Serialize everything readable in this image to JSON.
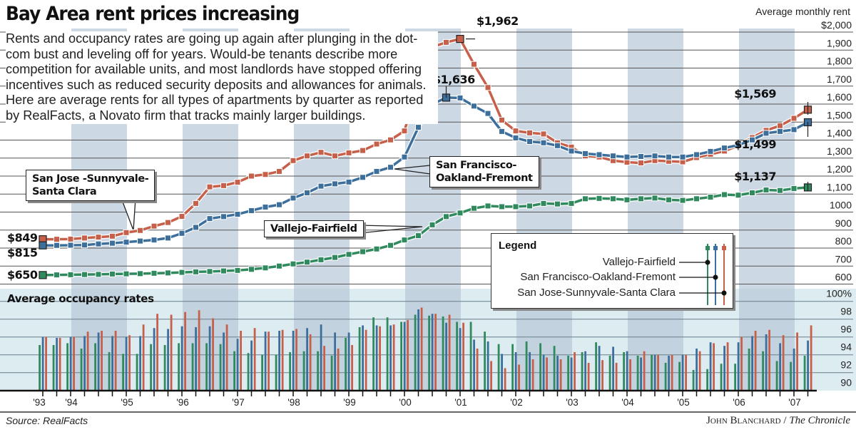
{
  "header": {
    "title": "Bay Area rent prices increasing",
    "intro": "Rents and occupancy rates are going up again after plunging in the dot-com bust and leveling off for years. Would-be tenants describe more competition for available units, and most landlords have stopped offering incentives such as reduced security deposits and allowances for animals. Here are average rents for all types of apartments by quarter as reported by RealFacts, a Novato firm that tracks mainly larger buildings."
  },
  "callouts": {
    "san_jose": "San Jose -Sunnyvale-\nSanta Clara",
    "san_francisco": "San Francisco-\nOakland-Fremont",
    "vallejo": "Vallejo-Fairfield"
  },
  "legend": {
    "title": "Legend",
    "entries": [
      "Vallejo-Fairfield",
      "San Francisco-Oakland-Fremont",
      "San Jose-Sunnyvale-Santa Clara"
    ]
  },
  "colors": {
    "san_jose": "#c7604a",
    "san_francisco": "#3d6f9c",
    "vallejo": "#2f8a5e",
    "band": "#cdd8e5",
    "occ_bg": "#ddecf1"
  },
  "footer": {
    "source": "Source: RealFacts",
    "credit_name": "John Blanchard",
    "credit_sep": " / ",
    "credit_pub": "The Chronicle"
  },
  "chart_data": [
    {
      "type": "line",
      "ylabel": "Average monthly rent",
      "ylim": [
        600,
        2000
      ],
      "yticks": [
        "600",
        "700",
        "800",
        "900",
        "1000",
        "1,100",
        "1,200",
        "1,300",
        "1,400",
        "1,500",
        "1,600",
        "1,700",
        "1,800",
        "1,900",
        "$2,000"
      ],
      "xticks": [
        "'93",
        "'94",
        "'95",
        "'96",
        "'97",
        "'98",
        "'99",
        "'00",
        "'01",
        "'02",
        "'03",
        "'04",
        "'05",
        "'06",
        "'07"
      ],
      "x_start": "1993 Q3",
      "x_end": "2007 Q2",
      "x_interval": "quarter",
      "grid": true,
      "series": [
        {
          "name": "San Jose-Sunnyvale-Santa Clara",
          "color": "#c7604a",
          "values": [
            849,
            849,
            850,
            856,
            861,
            866,
            886,
            898,
            922,
            942,
            976,
            1048,
            1140,
            1147,
            1166,
            1200,
            1209,
            1226,
            1286,
            1312,
            1332,
            1312,
            1329,
            1342,
            1378,
            1401,
            1451,
            1716,
            1917,
            1943,
            1962,
            1821,
            1692,
            1511,
            1451,
            1440,
            1434,
            1385,
            1361,
            1312,
            1306,
            1286,
            1277,
            1273,
            1286,
            1282,
            1279,
            1303,
            1321,
            1339,
            1369,
            1414,
            1454,
            1480,
            1521,
            1569
          ]
        },
        {
          "name": "San Francisco-Oakland-Fremont",
          "color": "#3d6f9c",
          "values": [
            815,
            815,
            816,
            817,
            823,
            827,
            833,
            839,
            845,
            856,
            882,
            915,
            964,
            975,
            988,
            1008,
            1028,
            1041,
            1078,
            1107,
            1144,
            1157,
            1167,
            1193,
            1226,
            1249,
            1306,
            1471,
            1599,
            1636,
            1634,
            1589,
            1548,
            1448,
            1412,
            1392,
            1385,
            1369,
            1339,
            1325,
            1319,
            1312,
            1306,
            1309,
            1312,
            1306,
            1306,
            1319,
            1337,
            1356,
            1372,
            1401,
            1438,
            1448,
            1458,
            1499
          ]
        },
        {
          "name": "Vallejo-Fairfield",
          "color": "#2f8a5e",
          "values": [
            650,
            651,
            652,
            653,
            654,
            656,
            657,
            658,
            660,
            662,
            665,
            668,
            670,
            673,
            676,
            682,
            690,
            700,
            712,
            722,
            735,
            748,
            765,
            780,
            795,
            815,
            845,
            869,
            929,
            975,
            995,
            1021,
            1034,
            1030,
            1030,
            1034,
            1048,
            1045,
            1048,
            1074,
            1076,
            1074,
            1068,
            1074,
            1078,
            1068,
            1065,
            1074,
            1083,
            1097,
            1094,
            1107,
            1123,
            1120,
            1131,
            1137
          ]
        }
      ],
      "annotations": [
        {
          "series": 0,
          "index": 0,
          "label": "$849"
        },
        {
          "series": 1,
          "index": 0,
          "label": "$815"
        },
        {
          "series": 2,
          "index": 0,
          "label": "$650"
        },
        {
          "series": 0,
          "index": 30,
          "label": "$1,962"
        },
        {
          "series": 1,
          "index": 29,
          "label": "$1,636"
        },
        {
          "series": 0,
          "index": 55,
          "label": "$1,569"
        },
        {
          "series": 1,
          "index": 55,
          "label": "$1,499"
        },
        {
          "series": 2,
          "index": 55,
          "label": "$1,137"
        }
      ]
    },
    {
      "type": "bar",
      "title": "Average occupancy rates",
      "ylim": [
        90,
        100
      ],
      "yticks": [
        "90",
        "92",
        "94",
        "96",
        "98",
        "100%"
      ],
      "series": [
        {
          "name": "Vallejo-Fairfield",
          "color": "#2f8a5e",
          "values": [
            95.1,
            95.1,
            95.3,
            94.7,
            95.3,
            94.3,
            94.1,
            94.1,
            95.2,
            95.1,
            95.3,
            95.3,
            95.3,
            95.2,
            94.4,
            94.2,
            94,
            94,
            94.3,
            94.4,
            94.4,
            93.9,
            95.9,
            97.1,
            98.2,
            98.2,
            97.7,
            98.5,
            98.4,
            98.3,
            97.7,
            97.7,
            96.6,
            95.2,
            95.2,
            95.5,
            95.3,
            95,
            93.9,
            94.3,
            95.4,
            93.9,
            94.3,
            93.9,
            94,
            93.1,
            93.2,
            92.3,
            92.4,
            93,
            93,
            94.7,
            94.4,
            93.3,
            93.2,
            93.9
          ]
        },
        {
          "name": "San Francisco-Oakland-Fremont",
          "color": "#3d6f9c",
          "values": [
            96,
            95.9,
            96,
            96.1,
            96.5,
            96.1,
            96,
            96.1,
            97,
            96.9,
            97.2,
            97.1,
            97.2,
            96.5,
            95.8,
            95.6,
            96.6,
            96.7,
            96.7,
            97,
            97.4,
            96.5,
            96.5,
            97.3,
            97.3,
            97.3,
            97.7,
            99.1,
            98.6,
            97.6,
            97,
            95.7,
            95.5,
            94.1,
            94.3,
            94.3,
            94,
            93.9,
            93.7,
            94.4,
            95,
            94.9,
            94.4,
            93.7,
            94,
            93.9,
            94,
            94.7,
            95.4,
            95,
            95.4,
            96.1,
            96.3,
            95.3,
            94.7,
            95.6
          ]
        },
        {
          "name": "San Jose-Sunnyvale-Santa Clara",
          "color": "#c7604a",
          "values": [
            96,
            95.9,
            96,
            96.6,
            96.7,
            96.7,
            96.2,
            97.4,
            98.6,
            98.5,
            98.8,
            99,
            98.1,
            97.4,
            96.7,
            97,
            96.6,
            96.8,
            96.9,
            96.3,
            95,
            94.7,
            95.1,
            96.8,
            97.2,
            97.4,
            97.9,
            99.3,
            98.6,
            98.5,
            97.6,
            94.7,
            93.3,
            92.5,
            92.9,
            93.5,
            93.7,
            93.5,
            94.3,
            93.1,
            93.4,
            93.1,
            93.5,
            94.4,
            94,
            94,
            94,
            94.4,
            95.3,
            95.4,
            96,
            96.7,
            96.8,
            96.2,
            96.5,
            97.3
          ]
        }
      ]
    }
  ]
}
